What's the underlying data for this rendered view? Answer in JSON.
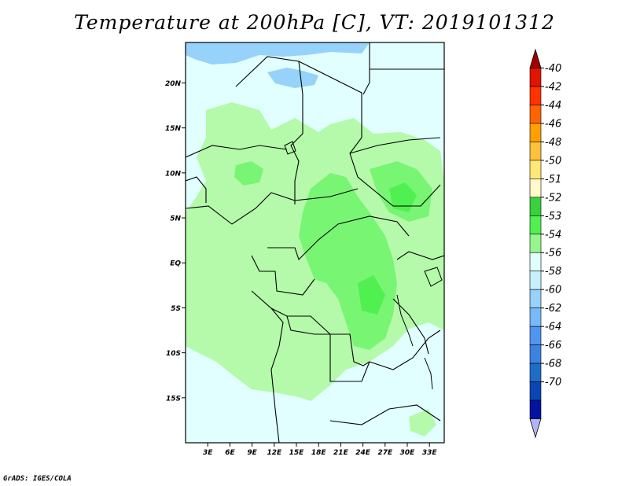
{
  "title": "Temperature at 200hPa [C], VT: 2019101312",
  "credit": "GrADS: IGES/COLA",
  "map": {
    "lat_range": [
      -20,
      24.5
    ],
    "lon_range": [
      0,
      35
    ],
    "lat_ticks": [
      {
        "value": 20,
        "label": "20N"
      },
      {
        "value": 15,
        "label": "15N"
      },
      {
        "value": 10,
        "label": "10N"
      },
      {
        "value": 5,
        "label": "5N"
      },
      {
        "value": 0,
        "label": "EQ"
      },
      {
        "value": -5,
        "label": "5S"
      },
      {
        "value": -10,
        "label": "10S"
      },
      {
        "value": -15,
        "label": "15S"
      }
    ],
    "lon_ticks": [
      {
        "value": 3,
        "label": "3E"
      },
      {
        "value": 6,
        "label": "6E"
      },
      {
        "value": 9,
        "label": "9E"
      },
      {
        "value": 12,
        "label": "12E"
      },
      {
        "value": 15,
        "label": "15E"
      },
      {
        "value": 18,
        "label": "18E"
      },
      {
        "value": 21,
        "label": "21E"
      },
      {
        "value": 24,
        "label": "24E"
      },
      {
        "value": 27,
        "label": "27E"
      },
      {
        "value": 30,
        "label": "30E"
      },
      {
        "value": 33,
        "label": "33E"
      }
    ],
    "background_color": "#e0fffe",
    "fill_colors": {
      "cold": "#96d2fa",
      "light_green": "#b4faaa",
      "green": "#78f573",
      "dark_green": "#50f050"
    }
  },
  "colorbar": {
    "labels": [
      "-40",
      "-42",
      "-44",
      "-46",
      "-48",
      "-50",
      "-51",
      "-52",
      "-53",
      "-54",
      "-56",
      "-58",
      "-60",
      "-62",
      "-64",
      "-66",
      "-68",
      "-70"
    ],
    "colors": [
      "#a00000",
      "#e11400",
      "#ff3200",
      "#ff6400",
      "#ffa000",
      "#ffc03c",
      "#ffe878",
      "#fffac8",
      "#37d23c",
      "#50f050",
      "#96f58c",
      "#e0fffe",
      "#c8f0ff",
      "#96d2fa",
      "#78b9fa",
      "#5096f0",
      "#3c82e1",
      "#1e6ec8",
      "#0a46b4",
      "#0014a0",
      "#b4b4f0"
    ]
  }
}
